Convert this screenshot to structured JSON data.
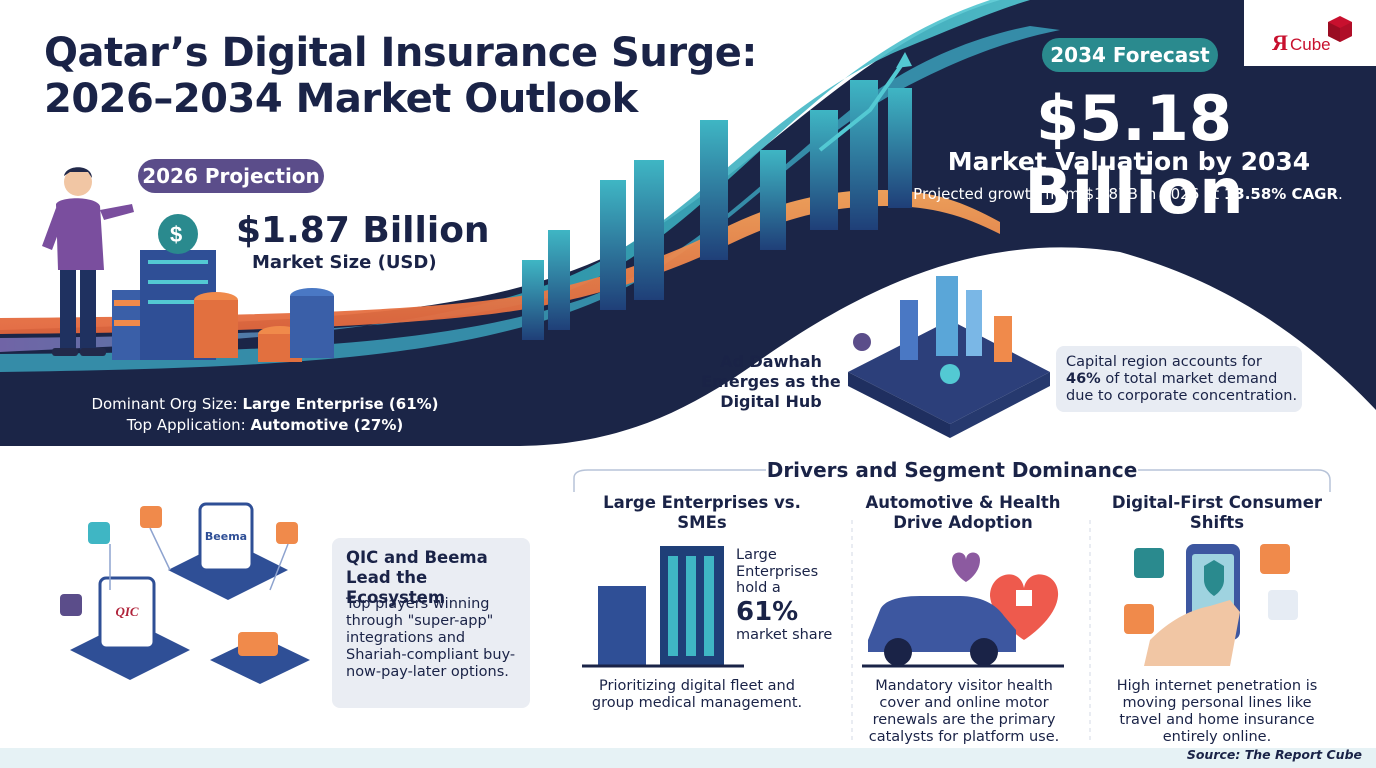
{
  "header": {
    "title_line1": "Qatar’s Digital Insurance Surge:",
    "title_line2": "2026–2034 Market Outlook"
  },
  "projection_2026": {
    "badge": "2026 Projection",
    "value": "$1.87 Billion",
    "label": "Market Size (USD)",
    "stat1_prefix": "Dominant Org Size: ",
    "stat1_value": "Large Enterprise (61%)",
    "stat2_prefix": "Top Application: ",
    "stat2_value": "Automotive (27%)"
  },
  "forecast_2034": {
    "badge": "2034 Forecast",
    "value": "$5.18 Billion",
    "label": "Market Valuation by 2034",
    "desc_prefix": "Projected growth from $1.87B in 2026 at ",
    "desc_cagr": "13.58% CAGR",
    "desc_suffix": "."
  },
  "logo": {
    "text_r": "Я",
    "text": "Cube"
  },
  "hub": {
    "title": "Ad Dawhah Emerges as the Digital Hub",
    "desc_prefix": "Capital region accounts for ",
    "desc_value": "46%",
    "desc_suffix": " of total market demand due to corporate concentration."
  },
  "ecosystem": {
    "title": "QIC and Beema Lead the Ecosystem",
    "desc": "Top players winning through \"super-app\" integrations and Shariah-compliant buy-now-pay-later options.",
    "badge_qic": "QIC",
    "badge_beema": "Beema"
  },
  "drivers": {
    "heading": "Drivers and Segment Dominance",
    "col1": {
      "title": "Large Enterprises vs. SMEs",
      "share_pre": "Large Enterprises hold a",
      "share_value": "61%",
      "share_post": "market share",
      "desc": "Prioritizing digital fleet and group medical management."
    },
    "col2": {
      "title": "Automotive & Health Drive Adoption",
      "desc": "Mandatory visitor health cover and online motor renewals are the primary catalysts for platform use."
    },
    "col3": {
      "title": "Digital-First Consumer Shifts",
      "desc": "High internet penetration is moving personal lines like travel and home insurance entirely online."
    }
  },
  "footer": {
    "source": "Source: The Report Cube"
  },
  "colors": {
    "navy": "#1a2347",
    "purple_badge": "#5b4d8a",
    "teal_badge": "#2a8a8e",
    "orange": "#f08a4b",
    "teal": "#3fb6c4",
    "red_cube": "#c8102e"
  }
}
